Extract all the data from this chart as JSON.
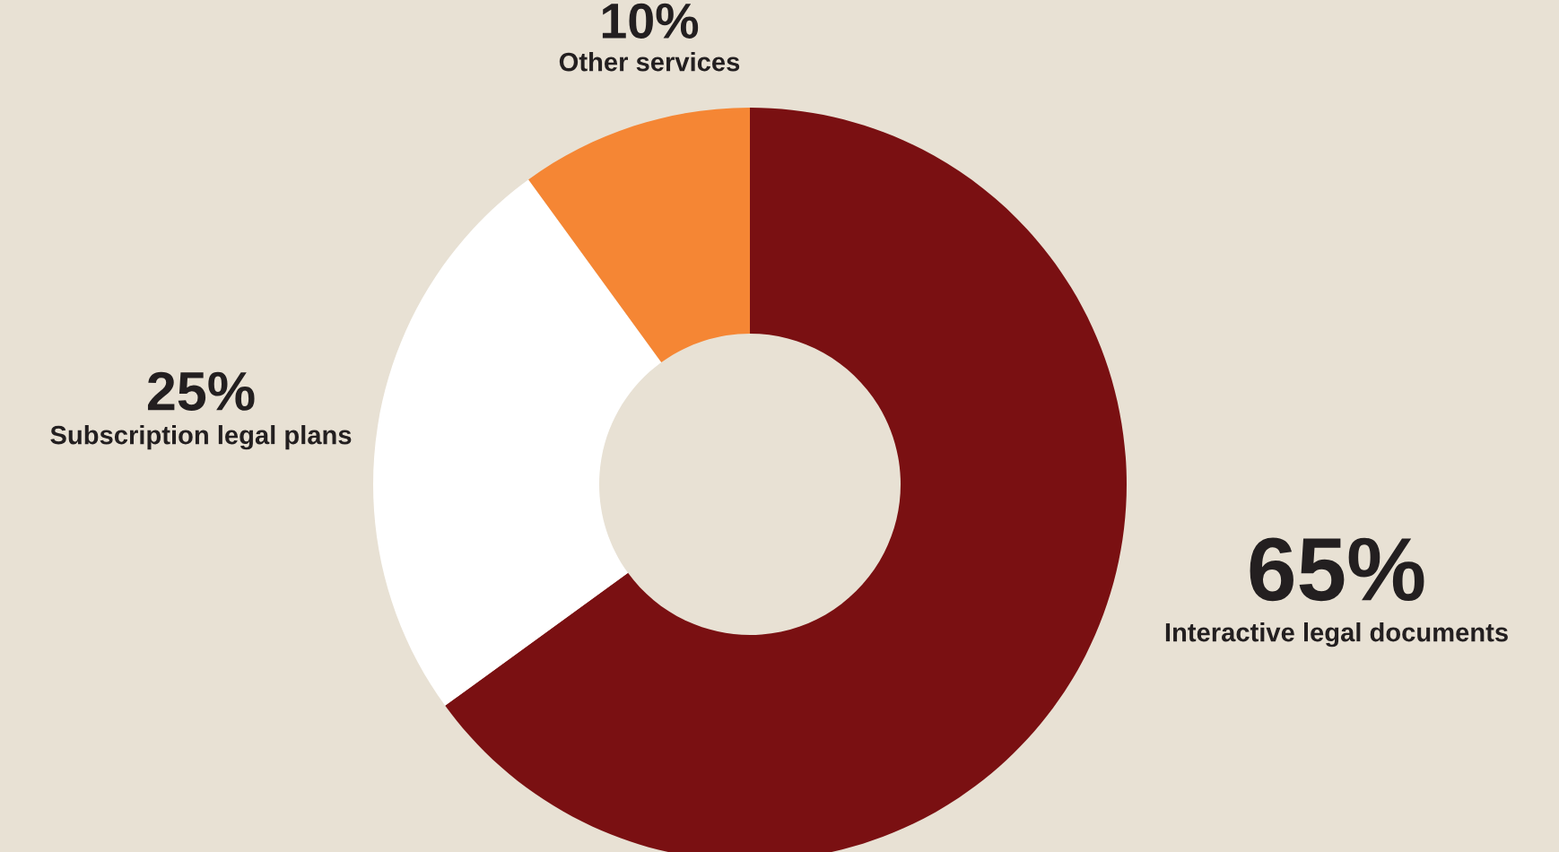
{
  "chart_data": {
    "type": "donut",
    "categories": [
      "Interactive legal documents",
      "Subscription legal plans",
      "Other services"
    ],
    "values": [
      65,
      25,
      10
    ],
    "value_labels": [
      "65%",
      "25%",
      "10%"
    ],
    "colors": [
      "#7a1012",
      "#ffffff",
      "#f58634"
    ],
    "legend": false
  }
}
